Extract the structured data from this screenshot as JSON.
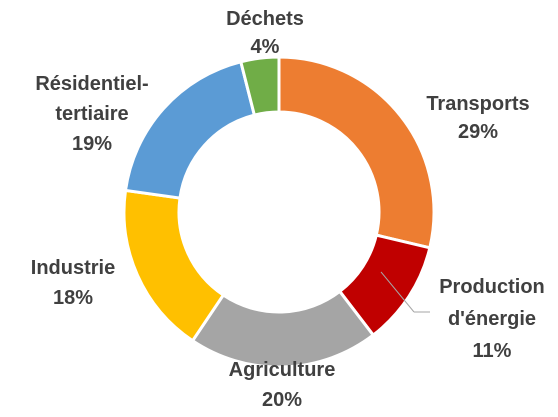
{
  "chart_data": {
    "type": "pie",
    "style": "donut",
    "start": "top",
    "direction": "clockwise",
    "slices": [
      {
        "name": "Transports",
        "value": 29,
        "label": "29%",
        "color": "#ED7D31"
      },
      {
        "name": "Production d'énergie",
        "name_lines": [
          "Production",
          "d'énergie"
        ],
        "value": 11,
        "label": "11%",
        "color": "#C00000"
      },
      {
        "name": "Agriculture",
        "value": 20,
        "label": "20%",
        "color": "#A5A5A5"
      },
      {
        "name": "Industrie",
        "value": 18,
        "label": "18%",
        "color": "#FFC000"
      },
      {
        "name": "Résidentiel-tertiaire",
        "name_lines": [
          "Résidentiel-",
          "tertiaire"
        ],
        "value": 19,
        "label": "19%",
        "color": "#5B9BD5"
      },
      {
        "name": "Déchets",
        "value": 4,
        "label": "4%",
        "color": "#70AD47"
      }
    ],
    "leader_line_color": "#A6A6A6"
  }
}
